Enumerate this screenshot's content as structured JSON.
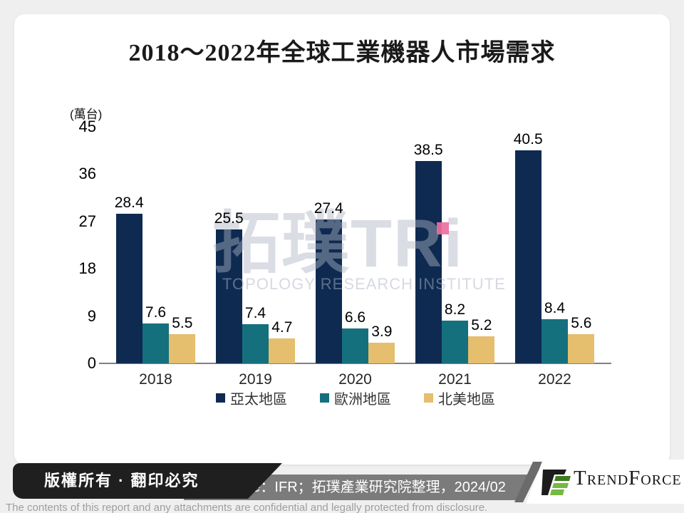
{
  "title": "2018～2022年全球工業機器人市場需求",
  "chart_data": {
    "type": "bar",
    "title": "2018～2022年全球工業機器人市場需求",
    "unit_label": "(萬台)",
    "categories": [
      "2018",
      "2019",
      "2020",
      "2021",
      "2022"
    ],
    "series": [
      {
        "name": "亞太地區",
        "color": "#0E2A51",
        "values": [
          28.4,
          25.5,
          27.4,
          38.5,
          40.5
        ]
      },
      {
        "name": "歐洲地區",
        "color": "#15707E",
        "values": [
          7.6,
          7.4,
          6.6,
          8.2,
          8.4
        ]
      },
      {
        "name": "北美地區",
        "color": "#E5BE6E",
        "values": [
          5.5,
          4.7,
          3.9,
          5.2,
          5.6
        ]
      }
    ],
    "ylim": [
      0,
      45
    ],
    "yticks": [
      0,
      9,
      18,
      27,
      36,
      45
    ],
    "legend_position": "bottom",
    "grid": false
  },
  "watermark": {
    "text": "拓璞TRi",
    "subtext": "TOPOLOGY RESEARCH INSTITUTE",
    "accent_color": "#ED6F9E"
  },
  "footer": {
    "copyright": "版權所有 · 翻印必究",
    "source": "Source：IFR；拓璞產業研究院整理，2024/02",
    "brand": "TrendForce",
    "disclaimer": "The contents of this report and any attachments are confidential and legally protected from disclosure."
  },
  "colors": {
    "background": "#EFEFEF",
    "card": "#FFFFFF",
    "axis": "#808080",
    "ribbon_black": "#1F1F1F",
    "source_bar_gray": "#7B7B7B",
    "brand_green_dark": "#3E7D1E",
    "brand_green_light": "#76B841"
  }
}
